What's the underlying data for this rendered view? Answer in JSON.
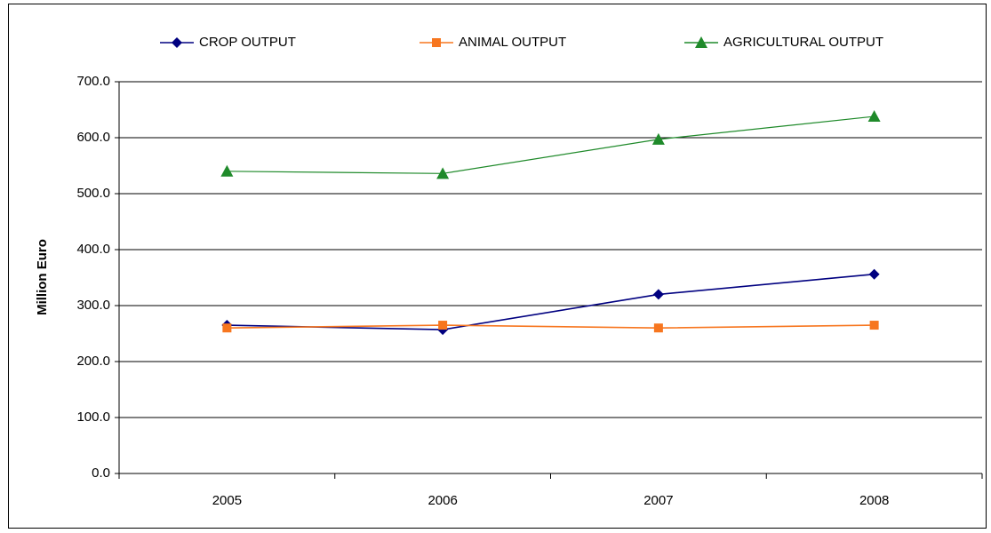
{
  "chart_data": {
    "type": "line",
    "y_label": "Million Euro",
    "categories": [
      "2005",
      "2006",
      "2007",
      "2008"
    ],
    "series": [
      {
        "name": "CROP OUTPUT",
        "color": "#000080",
        "marker": "diamond",
        "values": [
          265,
          257,
          320,
          356
        ]
      },
      {
        "name": "ANIMAL OUTPUT",
        "color": "#f7761f",
        "marker": "square",
        "values": [
          260,
          265,
          260,
          265
        ]
      },
      {
        "name": "AGRICULTURAL OUTPUT",
        "color": "#1f8a2a",
        "marker": "triangle",
        "values": [
          540,
          536,
          597,
          638
        ]
      }
    ],
    "ylim": [
      0,
      700
    ],
    "yticks": [
      {
        "value": 0,
        "label": "0.0"
      },
      {
        "value": 100,
        "label": "100.0"
      },
      {
        "value": 200,
        "label": "200.0"
      },
      {
        "value": 300,
        "label": "300.0"
      },
      {
        "value": 400,
        "label": "400.0"
      },
      {
        "value": 500,
        "label": "500.0"
      },
      {
        "value": 600,
        "label": "600.0"
      },
      {
        "value": 700,
        "label": "700.0"
      }
    ],
    "grid": true,
    "legend": "top"
  }
}
